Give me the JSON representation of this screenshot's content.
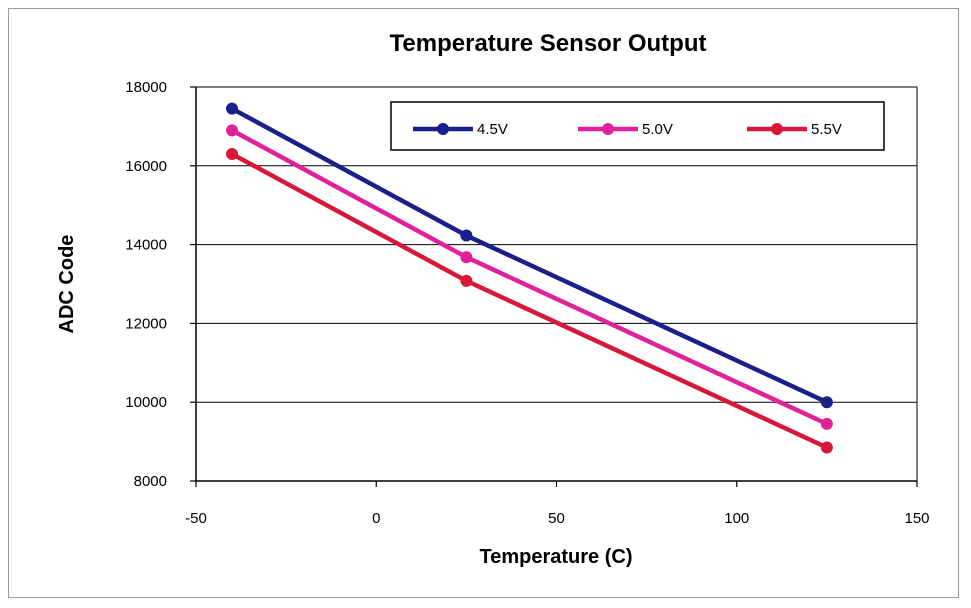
{
  "chart_data": {
    "type": "line",
    "title": "Temperature Sensor Output",
    "xlabel": "Temperature (C)",
    "ylabel": "ADC Code",
    "xlim": [
      -50,
      150
    ],
    "ylim": [
      8000,
      18000
    ],
    "xticks": [
      -50,
      0,
      50,
      100,
      150
    ],
    "yticks": [
      8000,
      10000,
      12000,
      14000,
      16000,
      18000
    ],
    "grid": "horizontal",
    "legend_position": "top-right",
    "x": [
      -40,
      25,
      125
    ],
    "series": [
      {
        "name": "4.5V",
        "color": "#1b1f8a",
        "values": [
          17450,
          14230,
          10000
        ]
      },
      {
        "name": "5.0V",
        "color": "#e0219a",
        "values": [
          16900,
          13680,
          9450
        ]
      },
      {
        "name": "5.5V",
        "color": "#d8183a",
        "values": [
          16300,
          13080,
          8850
        ]
      }
    ]
  }
}
